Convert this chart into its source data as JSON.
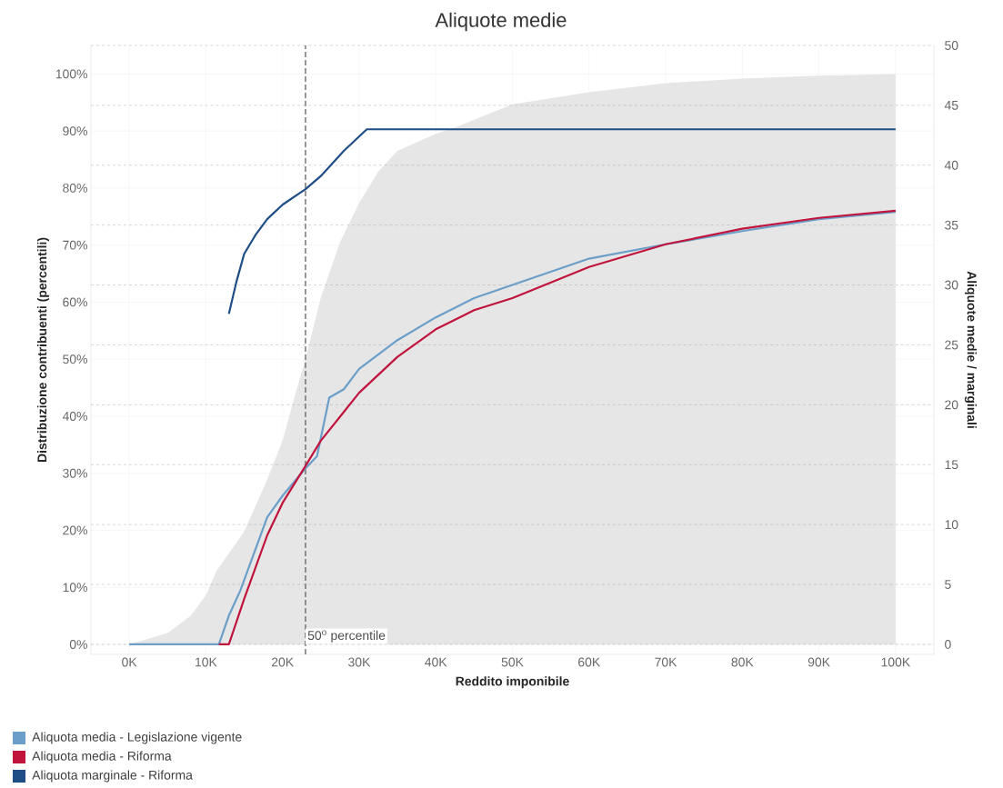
{
  "chart_data": {
    "type": "line",
    "title": "Aliquote medie",
    "xlabel": "Reddito imponibile",
    "ylabel": "Distribuzione contribuenti (percentili)",
    "y2label": "Aliquote medie / marginali",
    "xlim": [
      -5000,
      105000
    ],
    "ylim": [
      -1.75,
      105
    ],
    "y2lim": [
      -0.84,
      50
    ],
    "xticks": [
      {
        "value": 0,
        "label": "0K"
      },
      {
        "value": 10000,
        "label": "10K"
      },
      {
        "value": 20000,
        "label": "20K"
      },
      {
        "value": 30000,
        "label": "30K"
      },
      {
        "value": 40000,
        "label": "40K"
      },
      {
        "value": 50000,
        "label": "50K"
      },
      {
        "value": 60000,
        "label": "60K"
      },
      {
        "value": 70000,
        "label": "70K"
      },
      {
        "value": 80000,
        "label": "80K"
      },
      {
        "value": 90000,
        "label": "90K"
      },
      {
        "value": 100000,
        "label": "100K"
      }
    ],
    "yticks": [
      {
        "value": 0,
        "label": "0%"
      },
      {
        "value": 10,
        "label": "10%"
      },
      {
        "value": 20,
        "label": "20%"
      },
      {
        "value": 30,
        "label": "30%"
      },
      {
        "value": 40,
        "label": "40%"
      },
      {
        "value": 50,
        "label": "50%"
      },
      {
        "value": 60,
        "label": "60%"
      },
      {
        "value": 70,
        "label": "70%"
      },
      {
        "value": 80,
        "label": "80%"
      },
      {
        "value": 90,
        "label": "90%"
      },
      {
        "value": 100,
        "label": "100%"
      }
    ],
    "y2ticks": [
      0,
      5,
      10,
      15,
      20,
      25,
      30,
      35,
      40,
      45,
      50
    ],
    "grid": true,
    "legend": "bottom left",
    "ref_lines": [
      {
        "axis": "x",
        "value": 23000,
        "label": "50$^{o}$ percentile",
        "line_style": "dashed",
        "color": "#555555"
      }
    ],
    "series": [
      {
        "type": "area",
        "color": "#e6e6e6",
        "x": [
          0,
          5000,
          8000,
          10000,
          11400,
          15000,
          18000,
          20000,
          22000,
          23000,
          25000,
          27500,
          30000,
          32500,
          35000,
          40000,
          42500,
          50000,
          60000,
          70000,
          80000,
          90000,
          100000
        ],
        "values": [
          0,
          2,
          5,
          8.6,
          12.9,
          19.8,
          28.9,
          35.7,
          45.5,
          50,
          60.8,
          70.5,
          77.4,
          82.9,
          86.5,
          89.5,
          90.6,
          94.7,
          96.8,
          98.4,
          99.2,
          99.7,
          100
        ]
      },
      {
        "name": "Aliquota media - Legislazione vigente",
        "type": "line",
        "axis": "y2",
        "color": "#6b9ec8",
        "x": [
          0,
          11700,
          13000,
          14500,
          18000,
          20000,
          23000,
          24500,
          26100,
          28000,
          30000,
          35000,
          40000,
          45000,
          50000,
          60000,
          70000,
          80000,
          90000,
          100000
        ],
        "values": [
          0,
          0,
          2.4,
          4.5,
          10.6,
          12.4,
          14.7,
          15.7,
          20.6,
          21.3,
          23.0,
          25.4,
          27.3,
          28.9,
          30.0,
          32.2,
          33.4,
          34.5,
          35.5,
          36.1
        ]
      },
      {
        "name": "Aliquota media - Riforma",
        "type": "line",
        "axis": "y2",
        "color": "#c0143c",
        "x": [
          11700,
          13000,
          15000,
          18000,
          20000,
          23000,
          25000,
          28000,
          30000,
          35000,
          40000,
          45000,
          50000,
          60000,
          70000,
          80000,
          90000,
          100000
        ],
        "values": [
          0,
          0,
          3.8,
          9.1,
          11.8,
          14.9,
          17.0,
          19.4,
          21.0,
          24.0,
          26.3,
          27.9,
          28.9,
          31.5,
          33.4,
          34.7,
          35.6,
          36.2
        ]
      },
      {
        "name": "Aliquota marginale - Riforma",
        "type": "line",
        "axis": "y2",
        "color": "#1f4e87",
        "x": [
          13000,
          14000,
          15000,
          16500,
          18000,
          20000,
          23000,
          25000,
          28000,
          31000,
          100000
        ],
        "values": [
          27.6,
          30.3,
          32.6,
          34.2,
          35.5,
          36.7,
          38.0,
          39.1,
          41.2,
          43.0,
          43.0
        ]
      }
    ]
  }
}
